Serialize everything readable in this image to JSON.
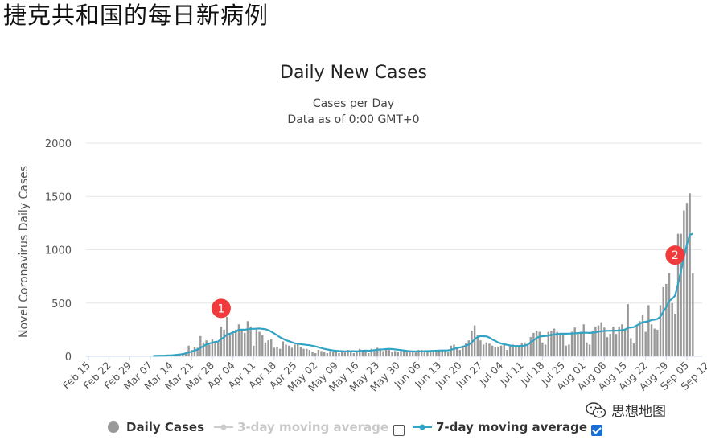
{
  "page_heading": "捷克共和国的每日新病例",
  "watermark": {
    "text": "思想地图",
    "icon": "wechat-icon"
  },
  "legend": {
    "daily_cases": "Daily Cases",
    "three_day": "3-day moving average",
    "seven_day": "7-day moving average",
    "three_day_checked": false,
    "seven_day_checked": true
  },
  "annotations": [
    {
      "label": "1",
      "x": "Mar 31",
      "y": 450
    },
    {
      "label": "2",
      "x": "Sep 01",
      "y": 950
    }
  ],
  "colors": {
    "bar": "#999999",
    "line": "#33a3c4",
    "annotation": "#ef3b3b",
    "grid": "#e6e6e6"
  },
  "chart_data": {
    "type": "bar",
    "title": "Daily New Cases",
    "subtitle": [
      "Cases per Day",
      "Data as of 0:00 GMT+0"
    ],
    "ylabel": "Novel Coronavirus Daily Cases",
    "xlabel": "",
    "ylim": [
      0,
      2000
    ],
    "yticks": [
      0,
      500,
      1000,
      1500,
      2000
    ],
    "grid": true,
    "legend_position": "bottom",
    "x_start": "Feb 15",
    "xticks": [
      "Feb 15",
      "Feb 22",
      "Feb 29",
      "Mar 07",
      "Mar 14",
      "Mar 21",
      "Mar 28",
      "Apr 04",
      "Apr 11",
      "Apr 18",
      "Apr 25",
      "May 02",
      "May 09",
      "May 16",
      "May 23",
      "May 30",
      "Jun 06",
      "Jun 13",
      "Jun 20",
      "Jun 27",
      "Jul 04",
      "Jul 11",
      "Jul 18",
      "Jul 25",
      "Aug 01",
      "Aug 08",
      "Aug 15",
      "Aug 22",
      "Aug 29",
      "Sep 05",
      "Sep 12"
    ],
    "series": [
      {
        "name": "Daily Cases",
        "type": "bar",
        "values": [
          0,
          0,
          0,
          0,
          0,
          0,
          0,
          0,
          0,
          0,
          0,
          0,
          0,
          0,
          0,
          0,
          0,
          0,
          0,
          0,
          0,
          0,
          3,
          2,
          5,
          5,
          6,
          8,
          10,
          15,
          20,
          25,
          30,
          40,
          100,
          60,
          90,
          80,
          190,
          130,
          150,
          110,
          160,
          130,
          130,
          280,
          250,
          370,
          200,
          230,
          250,
          300,
          240,
          220,
          330,
          280,
          100,
          250,
          230,
          200,
          130,
          150,
          160,
          80,
          90,
          70,
          140,
          110,
          100,
          80,
          110,
          120,
          90,
          70,
          70,
          60,
          40,
          30,
          60,
          50,
          40,
          30,
          50,
          40,
          50,
          30,
          40,
          50,
          60,
          40,
          30,
          50,
          70,
          40,
          50,
          30,
          70,
          50,
          80,
          60,
          50,
          70,
          60,
          40,
          50,
          40,
          50,
          60,
          40,
          50,
          40,
          50,
          60,
          60,
          50,
          50,
          40,
          50,
          60,
          50,
          60,
          50,
          40,
          100,
          110,
          80,
          60,
          100,
          120,
          150,
          240,
          290,
          200,
          150,
          110,
          130,
          120,
          100,
          90,
          90,
          100,
          120,
          60,
          100,
          110,
          90,
          100,
          120,
          130,
          110,
          180,
          220,
          240,
          230,
          130,
          110,
          230,
          240,
          260,
          230,
          220,
          210,
          100,
          110,
          230,
          270,
          210,
          230,
          300,
          130,
          110,
          240,
          280,
          290,
          320,
          270,
          180,
          210,
          280,
          210,
          280,
          300,
          260,
          490,
          170,
          120,
          290,
          330,
          390,
          230,
          480,
          300,
          260,
          250,
          480,
          650,
          680,
          780,
          500,
          400,
          1150,
          1150,
          1370,
          1440,
          1530,
          780
        ]
      },
      {
        "name": "7-day moving average",
        "type": "line",
        "values": [
          0,
          0,
          0,
          0,
          0,
          0,
          0,
          0,
          0,
          0,
          0,
          0,
          0,
          0,
          0,
          0,
          0,
          0,
          0,
          0,
          0,
          0,
          4,
          5,
          6,
          6,
          7,
          8,
          9,
          11,
          14,
          17,
          21,
          27,
          38,
          43,
          54,
          63,
          80,
          96,
          111,
          120,
          128,
          135,
          139,
          162,
          179,
          205,
          211,
          225,
          231,
          250,
          250,
          249,
          254,
          258,
          258,
          260,
          262,
          257,
          255,
          245,
          232,
          215,
          197,
          178,
          165,
          150,
          142,
          132,
          122,
          118,
          114,
          111,
          107,
          104,
          99,
          93,
          85,
          78,
          70,
          64,
          60,
          55,
          52,
          50,
          48,
          47,
          47,
          48,
          48,
          47,
          50,
          52,
          54,
          53,
          54,
          58,
          62,
          64,
          66,
          68,
          70,
          68,
          65,
          62,
          59,
          55,
          51,
          48,
          47,
          46,
          46,
          47,
          48,
          49,
          50,
          52,
          53,
          54,
          55,
          55,
          56,
          62,
          70,
          77,
          82,
          90,
          100,
          110,
          130,
          160,
          180,
          190,
          189,
          187,
          176,
          158,
          145,
          130,
          120,
          113,
          108,
          102,
          98,
          96,
          97,
          98,
          100,
          110,
          130,
          150,
          172,
          185,
          189,
          190,
          196,
          200,
          205,
          208,
          211,
          212,
          212,
          213,
          214,
          216,
          218,
          220,
          222,
          221,
          220,
          222,
          226,
          231,
          236,
          238,
          239,
          240,
          240,
          241,
          243,
          245,
          250,
          268,
          270,
          274,
          290,
          305,
          320,
          324,
          330,
          340,
          344,
          351,
          372,
          420,
          460,
          520,
          540,
          570,
          680,
          800,
          930,
          1050,
          1140,
          1150
        ]
      }
    ]
  }
}
